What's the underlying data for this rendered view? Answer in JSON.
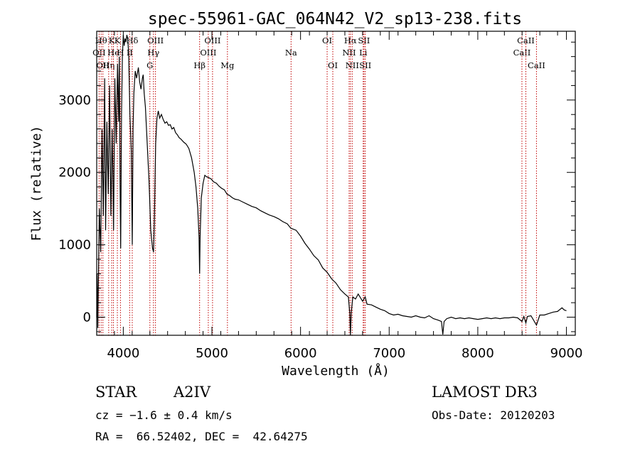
{
  "chart_data": {
    "type": "line",
    "title": "spec-55961-GAC_064N42_V2_sp13-238.fits",
    "xlabel": "Wavelength (Å)",
    "ylabel": "Flux (relative)",
    "xlim": [
      3700,
      9100
    ],
    "ylim": [
      -250,
      3950
    ],
    "x_ticks": [
      4000,
      5000,
      6000,
      7000,
      8000,
      9000
    ],
    "y_ticks": [
      0,
      1000,
      2000,
      3000
    ],
    "x_tick_labels": [
      "4000",
      "5000",
      "6000",
      "7000",
      "8000",
      "9000"
    ],
    "y_tick_labels": [
      "0",
      "1000",
      "2000",
      "3000"
    ],
    "series": [
      {
        "name": "flux",
        "points": [
          [
            3700,
            0
          ],
          [
            3705,
            600
          ],
          [
            3712,
            -150
          ],
          [
            3730,
            1500
          ],
          [
            3745,
            900
          ],
          [
            3760,
            2600
          ],
          [
            3775,
            1400
          ],
          [
            3790,
            3300
          ],
          [
            3800,
            1200
          ],
          [
            3815,
            2700
          ],
          [
            3830,
            1700
          ],
          [
            3845,
            3200
          ],
          [
            3860,
            1400
          ],
          [
            3875,
            2600
          ],
          [
            3890,
            1200
          ],
          [
            3905,
            3300
          ],
          [
            3920,
            2400
          ],
          [
            3935,
            3500
          ],
          [
            3948,
            2700
          ],
          [
            3955,
            3600
          ],
          [
            3963,
            1900
          ],
          [
            3970,
            950
          ],
          [
            3980,
            2800
          ],
          [
            3990,
            3600
          ],
          [
            4000,
            3900
          ],
          [
            4010,
            3750
          ],
          [
            4020,
            3850
          ],
          [
            4030,
            3800
          ],
          [
            4040,
            3900
          ],
          [
            4050,
            3850
          ],
          [
            4060,
            3650
          ],
          [
            4075,
            2800
          ],
          [
            4090,
            2300
          ],
          [
            4101,
            1000
          ],
          [
            4110,
            2600
          ],
          [
            4120,
            3100
          ],
          [
            4135,
            3400
          ],
          [
            4150,
            3300
          ],
          [
            4170,
            3450
          ],
          [
            4185,
            3250
          ],
          [
            4200,
            3150
          ],
          [
            4215,
            3300
          ],
          [
            4225,
            3350
          ],
          [
            4235,
            3100
          ],
          [
            4250,
            2900
          ],
          [
            4270,
            2400
          ],
          [
            4290,
            1900
          ],
          [
            4310,
            1200
          ],
          [
            4330,
            950
          ],
          [
            4341,
            900
          ],
          [
            4350,
            1300
          ],
          [
            4365,
            2400
          ],
          [
            4380,
            2750
          ],
          [
            4395,
            2850
          ],
          [
            4410,
            2750
          ],
          [
            4430,
            2800
          ],
          [
            4450,
            2730
          ],
          [
            4470,
            2680
          ],
          [
            4490,
            2700
          ],
          [
            4510,
            2650
          ],
          [
            4530,
            2660
          ],
          [
            4550,
            2600
          ],
          [
            4570,
            2620
          ],
          [
            4590,
            2550
          ],
          [
            4610,
            2520
          ],
          [
            4630,
            2480
          ],
          [
            4650,
            2460
          ],
          [
            4680,
            2420
          ],
          [
            4710,
            2390
          ],
          [
            4740,
            2330
          ],
          [
            4770,
            2200
          ],
          [
            4800,
            2000
          ],
          [
            4820,
            1800
          ],
          [
            4840,
            1500
          ],
          [
            4855,
            1100
          ],
          [
            4861,
            600
          ],
          [
            4867,
            1100
          ],
          [
            4880,
            1650
          ],
          [
            4900,
            1850
          ],
          [
            4920,
            1960
          ],
          [
            4940,
            1940
          ],
          [
            4960,
            1930
          ],
          [
            4990,
            1910
          ],
          [
            5020,
            1870
          ],
          [
            5050,
            1850
          ],
          [
            5080,
            1810
          ],
          [
            5110,
            1780
          ],
          [
            5140,
            1760
          ],
          [
            5170,
            1700
          ],
          [
            5200,
            1680
          ],
          [
            5230,
            1650
          ],
          [
            5260,
            1630
          ],
          [
            5300,
            1620
          ],
          [
            5350,
            1590
          ],
          [
            5400,
            1560
          ],
          [
            5450,
            1530
          ],
          [
            5500,
            1510
          ],
          [
            5550,
            1470
          ],
          [
            5600,
            1440
          ],
          [
            5650,
            1410
          ],
          [
            5700,
            1390
          ],
          [
            5750,
            1360
          ],
          [
            5800,
            1320
          ],
          [
            5850,
            1290
          ],
          [
            5890,
            1230
          ],
          [
            5950,
            1200
          ],
          [
            6000,
            1120
          ],
          [
            6050,
            1020
          ],
          [
            6100,
            940
          ],
          [
            6150,
            850
          ],
          [
            6200,
            790
          ],
          [
            6250,
            680
          ],
          [
            6300,
            620
          ],
          [
            6350,
            530
          ],
          [
            6400,
            470
          ],
          [
            6450,
            380
          ],
          [
            6500,
            320
          ],
          [
            6540,
            280
          ],
          [
            6555,
            60
          ],
          [
            6563,
            -250
          ],
          [
            6572,
            60
          ],
          [
            6590,
            280
          ],
          [
            6620,
            250
          ],
          [
            6650,
            320
          ],
          [
            6700,
            220
          ],
          [
            6730,
            280
          ],
          [
            6750,
            180
          ],
          [
            6800,
            170
          ],
          [
            6850,
            140
          ],
          [
            6900,
            110
          ],
          [
            6950,
            90
          ],
          [
            7000,
            50
          ],
          [
            7050,
            30
          ],
          [
            7100,
            40
          ],
          [
            7150,
            20
          ],
          [
            7200,
            10
          ],
          [
            7250,
            0
          ],
          [
            7300,
            20
          ],
          [
            7350,
            0
          ],
          [
            7400,
            -10
          ],
          [
            7450,
            20
          ],
          [
            7500,
            -20
          ],
          [
            7550,
            -40
          ],
          [
            7590,
            -60
          ],
          [
            7605,
            -240
          ],
          [
            7620,
            -60
          ],
          [
            7650,
            -20
          ],
          [
            7700,
            0
          ],
          [
            7750,
            -20
          ],
          [
            7800,
            -10
          ],
          [
            7850,
            -20
          ],
          [
            7900,
            -10
          ],
          [
            7950,
            -20
          ],
          [
            8000,
            -30
          ],
          [
            8050,
            -20
          ],
          [
            8100,
            -10
          ],
          [
            8150,
            -20
          ],
          [
            8200,
            -10
          ],
          [
            8250,
            -20
          ],
          [
            8300,
            -10
          ],
          [
            8350,
            -10
          ],
          [
            8400,
            0
          ],
          [
            8450,
            -10
          ],
          [
            8498,
            -60
          ],
          [
            8520,
            10
          ],
          [
            8542,
            -80
          ],
          [
            8560,
            10
          ],
          [
            8600,
            20
          ],
          [
            8662,
            -110
          ],
          [
            8700,
            30
          ],
          [
            8750,
            30
          ],
          [
            8800,
            50
          ],
          [
            8850,
            70
          ],
          [
            8900,
            80
          ],
          [
            8950,
            130
          ],
          [
            8975,
            100
          ],
          [
            9000,
            90
          ]
        ]
      }
    ],
    "line_markers": [
      {
        "x": 3727,
        "label": "OII",
        "row": 2
      },
      {
        "x": 3750,
        "label": "Hθ",
        "row": 1
      },
      {
        "x": 3770,
        "label": "OII",
        "row": 3
      },
      {
        "x": 3835,
        "label": "Hη",
        "row": 3
      },
      {
        "x": 3869,
        "label": "K",
        "row": 1
      },
      {
        "x": 3889,
        "label": "He",
        "row": 2
      },
      {
        "x": 3933,
        "label": "K",
        "row": 1
      },
      {
        "x": 3968,
        "label": "H",
        "row": 2
      },
      {
        "x": 4101,
        "label": "Hδ",
        "row": 1
      },
      {
        "x": 4072,
        "label": "II",
        "row": 2
      },
      {
        "x": 4300,
        "label": "G",
        "row": 3
      },
      {
        "x": 4340,
        "label": "Hγ",
        "row": 2
      },
      {
        "x": 4363,
        "label": "OIII",
        "row": 1
      },
      {
        "x": 4861,
        "label": "Hβ",
        "row": 3
      },
      {
        "x": 4959,
        "label": "OIII",
        "row": 2
      },
      {
        "x": 5007,
        "label": "OIII",
        "row": 1
      },
      {
        "x": 5175,
        "label": "Mg",
        "row": 3
      },
      {
        "x": 5893,
        "label": "Na",
        "row": 2
      },
      {
        "x": 6300,
        "label": "OI",
        "row": 1
      },
      {
        "x": 6364,
        "label": "OI",
        "row": 3
      },
      {
        "x": 6548,
        "label": "NII",
        "row": 2
      },
      {
        "x": 6563,
        "label": "Hα",
        "row": 1
      },
      {
        "x": 6583,
        "label": "NII",
        "row": 3
      },
      {
        "x": 6707,
        "label": "Li",
        "row": 2
      },
      {
        "x": 6716,
        "label": "SII",
        "row": 1
      },
      {
        "x": 6731,
        "label": "SII",
        "row": 3
      },
      {
        "x": 8498,
        "label": "CaII",
        "row": 2
      },
      {
        "x": 8542,
        "label": "CaII",
        "row": 1
      },
      {
        "x": 8662,
        "label": "CaII",
        "row": 3
      }
    ],
    "colors": {
      "spectrum": "#000000",
      "markers": "#c00000",
      "axes": "#000000"
    }
  },
  "annotations": {
    "object_class": "STAR",
    "subclass": "A2IV",
    "survey": "LAMOST DR3",
    "redshift": "cz = −1.6 ± 0.4 km/s",
    "obs_date": "Obs-Date: 20120203",
    "coords": "RA =  66.52402, DEC =  42.64275"
  }
}
